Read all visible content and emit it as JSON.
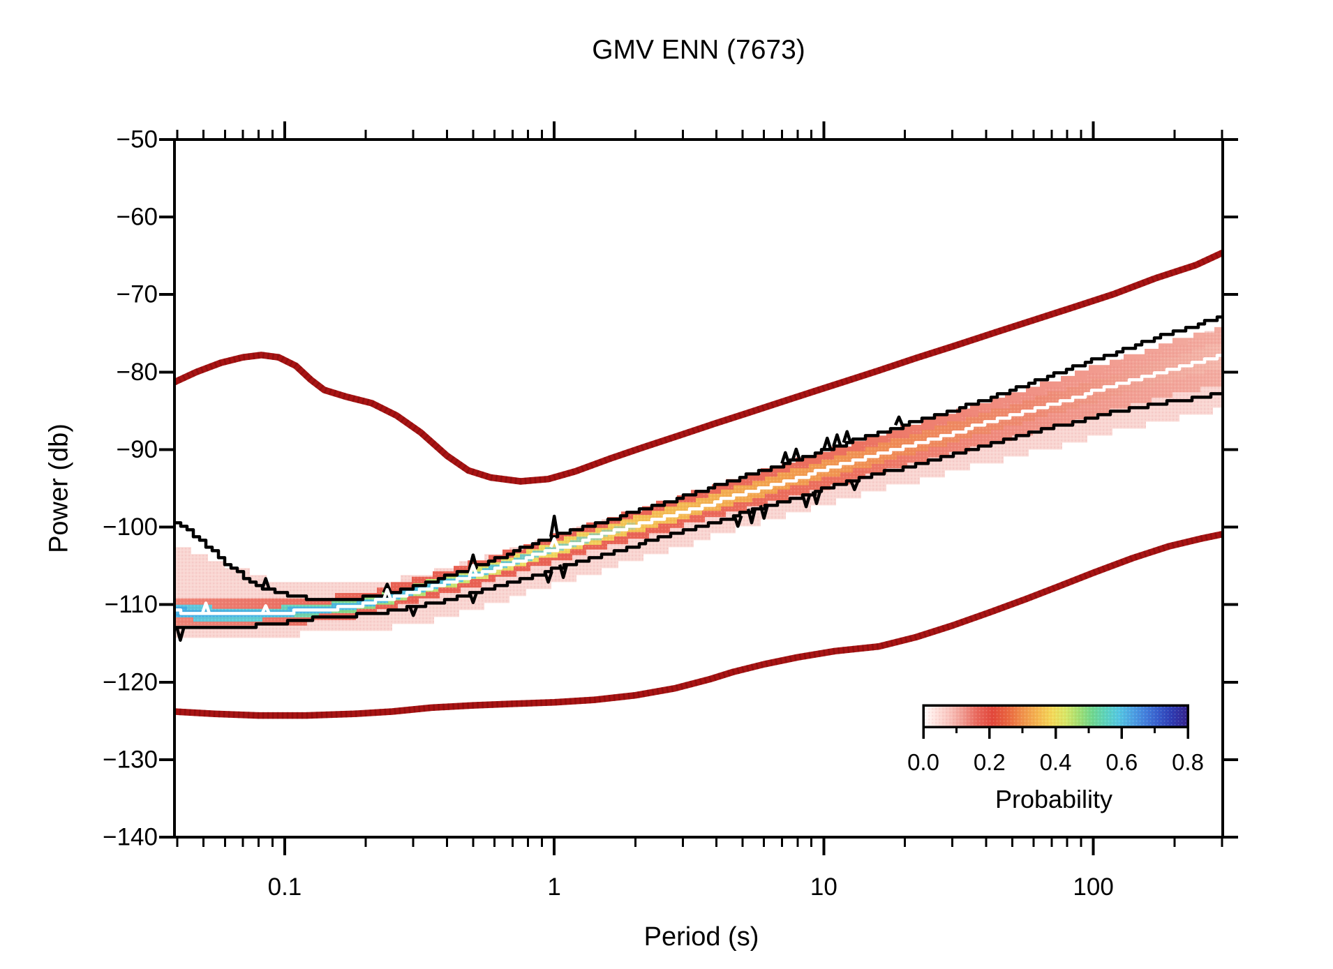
{
  "chart_data": {
    "type": "line",
    "title": "GMV ENN (7673)",
    "xlabel": "Period (s)",
    "ylabel": "Power (db)",
    "x_scale": "log",
    "xlim": [
      0.039,
      302
    ],
    "ylim": [
      -140,
      -50
    ],
    "grid": false,
    "x_major_ticks": [
      0.1,
      1,
      10,
      100
    ],
    "x_major_tick_labels": [
      "0.1",
      "1",
      "10",
      "100"
    ],
    "y_major_ticks": [
      -140,
      -130,
      -120,
      -110,
      -100,
      -90,
      -80,
      -70,
      -60,
      -50
    ],
    "y_major_tick_labels": [
      "−140",
      "−130",
      "−120",
      "−110",
      "−100",
      "−90",
      "−80",
      "−70",
      "−60",
      "−50"
    ],
    "colors": {
      "frame": "#000000",
      "noise_model": "#a81414",
      "noise_model_dots": "#7c0909",
      "envelope": "#000000",
      "mode_line": "#ffffff",
      "center_line": "#2a35a8",
      "halo": "#f8cfca"
    },
    "colorbar": {
      "label": "Probability",
      "tick_values": [
        0.0,
        0.2,
        0.4,
        0.6,
        0.8
      ],
      "tick_labels": [
        "0.0",
        "0.2",
        "0.4",
        "0.6",
        "0.8"
      ],
      "minor_tick_values": [
        0.1,
        0.3,
        0.5,
        0.7
      ],
      "range": [
        0.0,
        0.8
      ],
      "stops": [
        [
          0.0,
          "#ffffff"
        ],
        [
          0.03,
          "#ffe9e5"
        ],
        [
          0.08,
          "#f9c4bd"
        ],
        [
          0.12,
          "#f09a90"
        ],
        [
          0.16,
          "#e96a5e"
        ],
        [
          0.21,
          "#e2473a"
        ],
        [
          0.26,
          "#ea6a40"
        ],
        [
          0.3,
          "#f0924a"
        ],
        [
          0.35,
          "#f5ba50"
        ],
        [
          0.39,
          "#f3da58"
        ],
        [
          0.43,
          "#d8e866"
        ],
        [
          0.47,
          "#a2e072"
        ],
        [
          0.51,
          "#6ed88e"
        ],
        [
          0.55,
          "#5ad4bc"
        ],
        [
          0.59,
          "#52c8e2"
        ],
        [
          0.63,
          "#4aa4e4"
        ],
        [
          0.67,
          "#4080de"
        ],
        [
          0.71,
          "#345ccc"
        ],
        [
          0.75,
          "#2b3cb4"
        ],
        [
          0.8,
          "#32208c"
        ]
      ]
    },
    "series": [
      {
        "name": "noise-model-high",
        "style": "smooth",
        "width": 9.5,
        "points": [
          [
            0.039,
            -81.3
          ],
          [
            0.047,
            -80.0
          ],
          [
            0.058,
            -78.8
          ],
          [
            0.07,
            -78.1
          ],
          [
            0.082,
            -77.8
          ],
          [
            0.095,
            -78.1
          ],
          [
            0.11,
            -79.2
          ],
          [
            0.125,
            -81.0
          ],
          [
            0.14,
            -82.3
          ],
          [
            0.17,
            -83.2
          ],
          [
            0.21,
            -84.0
          ],
          [
            0.26,
            -85.6
          ],
          [
            0.32,
            -87.8
          ],
          [
            0.4,
            -90.8
          ],
          [
            0.48,
            -92.7
          ],
          [
            0.58,
            -93.6
          ],
          [
            0.75,
            -94.1
          ],
          [
            0.95,
            -93.8
          ],
          [
            1.2,
            -92.8
          ],
          [
            1.6,
            -91.2
          ],
          [
            2.1,
            -89.8
          ],
          [
            2.9,
            -88.2
          ],
          [
            3.9,
            -86.7
          ],
          [
            5.2,
            -85.3
          ],
          [
            6.9,
            -83.9
          ],
          [
            9,
            -82.6
          ],
          [
            12,
            -81.2
          ],
          [
            16,
            -79.8
          ],
          [
            22,
            -78.2
          ],
          [
            30,
            -76.7
          ],
          [
            44,
            -74.8
          ],
          [
            60,
            -73.3
          ],
          [
            85,
            -71.6
          ],
          [
            120,
            -69.9
          ],
          [
            170,
            -67.9
          ],
          [
            240,
            -66.2
          ],
          [
            302,
            -64.6
          ]
        ]
      },
      {
        "name": "noise-model-low",
        "style": "smooth",
        "width": 9.5,
        "points": [
          [
            0.039,
            -123.8
          ],
          [
            0.055,
            -124.1
          ],
          [
            0.08,
            -124.3
          ],
          [
            0.12,
            -124.3
          ],
          [
            0.18,
            -124.1
          ],
          [
            0.25,
            -123.8
          ],
          [
            0.35,
            -123.3
          ],
          [
            0.5,
            -123.0
          ],
          [
            0.7,
            -122.8
          ],
          [
            1.0,
            -122.6
          ],
          [
            1.4,
            -122.3
          ],
          [
            2.0,
            -121.7
          ],
          [
            2.8,
            -120.8
          ],
          [
            3.8,
            -119.6
          ],
          [
            4.6,
            -118.7
          ],
          [
            6,
            -117.7
          ],
          [
            8,
            -116.8
          ],
          [
            11,
            -116.0
          ],
          [
            16,
            -115.4
          ],
          [
            22,
            -114.2
          ],
          [
            30,
            -112.7
          ],
          [
            42,
            -110.9
          ],
          [
            56,
            -109.3
          ],
          [
            75,
            -107.6
          ],
          [
            100,
            -105.9
          ],
          [
            140,
            -104.0
          ],
          [
            190,
            -102.5
          ],
          [
            250,
            -101.5
          ],
          [
            302,
            -100.9
          ]
        ]
      },
      {
        "name": "envelope-upper",
        "style": "step",
        "width": 4.5,
        "points": [
          [
            0.039,
            -99.3
          ],
          [
            0.043,
            -100.4
          ],
          [
            0.048,
            -101.8
          ],
          [
            0.054,
            -103.3
          ],
          [
            0.061,
            -104.9
          ],
          [
            0.07,
            -106.4
          ],
          [
            0.08,
            -107.6
          ],
          [
            0.092,
            -108.4
          ],
          [
            0.105,
            -108.9
          ],
          [
            0.12,
            -109.2
          ],
          [
            0.14,
            -109.4
          ],
          [
            0.17,
            -109.3
          ],
          [
            0.21,
            -109.0
          ],
          [
            0.26,
            -108.3
          ],
          [
            0.33,
            -107.2
          ],
          [
            0.42,
            -106.0
          ],
          [
            0.52,
            -104.9
          ],
          [
            0.65,
            -103.6
          ],
          [
            0.8,
            -102.4
          ],
          [
            1.0,
            -101.1
          ],
          [
            1.3,
            -99.9
          ],
          [
            1.7,
            -98.7
          ],
          [
            2.2,
            -97.5
          ],
          [
            2.9,
            -96.2
          ],
          [
            3.8,
            -94.9
          ],
          [
            5,
            -93.5
          ],
          [
            6.5,
            -92.2
          ],
          [
            8.5,
            -90.9
          ],
          [
            11,
            -89.6
          ],
          [
            14,
            -88.4
          ],
          [
            19,
            -87.0
          ],
          [
            25,
            -85.8
          ],
          [
            33,
            -84.4
          ],
          [
            44,
            -83.0
          ],
          [
            60,
            -81.2
          ],
          [
            80,
            -79.6
          ],
          [
            110,
            -77.9
          ],
          [
            150,
            -76.2
          ],
          [
            200,
            -74.7
          ],
          [
            250,
            -73.7
          ],
          [
            302,
            -72.9
          ]
        ],
        "spikes": [
          [
            0.085,
            1.3
          ],
          [
            0.24,
            1.2
          ],
          [
            0.5,
            1.5
          ],
          [
            1.0,
            2.5
          ],
          [
            7.2,
            1.3
          ],
          [
            7.9,
            1.3
          ],
          [
            10.3,
            1.4
          ],
          [
            11.2,
            1.4
          ],
          [
            12.2,
            1.4
          ],
          [
            19,
            1.2
          ]
        ]
      },
      {
        "name": "envelope-lower",
        "style": "step",
        "width": 4.5,
        "points": [
          [
            0.039,
            -112.9
          ],
          [
            0.07,
            -112.8
          ],
          [
            0.09,
            -112.5
          ],
          [
            0.11,
            -112.0
          ],
          [
            0.14,
            -111.7
          ],
          [
            0.18,
            -111.4
          ],
          [
            0.23,
            -111.0
          ],
          [
            0.3,
            -110.3
          ],
          [
            0.38,
            -109.5
          ],
          [
            0.48,
            -108.6
          ],
          [
            0.6,
            -107.7
          ],
          [
            0.75,
            -106.7
          ],
          [
            0.95,
            -105.6
          ],
          [
            1.2,
            -104.5
          ],
          [
            1.55,
            -103.4
          ],
          [
            2.0,
            -102.3
          ],
          [
            2.6,
            -101.1
          ],
          [
            3.4,
            -99.9
          ],
          [
            4.5,
            -98.7
          ],
          [
            5.8,
            -97.5
          ],
          [
            7.5,
            -96.4
          ],
          [
            9.5,
            -95.3
          ],
          [
            12,
            -94.3
          ],
          [
            16,
            -93.1
          ],
          [
            21,
            -92.0
          ],
          [
            28,
            -90.8
          ],
          [
            37,
            -89.6
          ],
          [
            48,
            -88.6
          ],
          [
            62,
            -87.6
          ],
          [
            80,
            -86.6
          ],
          [
            105,
            -85.6
          ],
          [
            140,
            -84.6
          ],
          [
            185,
            -83.9
          ],
          [
            240,
            -83.3
          ],
          [
            302,
            -82.8
          ]
        ],
        "spikes": [
          [
            0.041,
            -1.7
          ],
          [
            0.3,
            -1.1
          ],
          [
            0.5,
            -1.3
          ],
          [
            0.95,
            -1.5
          ],
          [
            1.08,
            -1.5
          ],
          [
            4.8,
            -1.5
          ],
          [
            5.4,
            -1.6
          ],
          [
            6.0,
            -1.5
          ],
          [
            8.6,
            -1.6
          ],
          [
            9.4,
            -1.6
          ],
          [
            13,
            -1.2
          ]
        ]
      },
      {
        "name": "mode",
        "style": "step",
        "width": 4.5,
        "points": [
          [
            0.039,
            -110.9
          ],
          [
            0.05,
            -111.2
          ],
          [
            0.07,
            -111.3
          ],
          [
            0.09,
            -111.1
          ],
          [
            0.12,
            -110.8
          ],
          [
            0.16,
            -110.4
          ],
          [
            0.2,
            -109.9
          ],
          [
            0.27,
            -108.7
          ],
          [
            0.35,
            -107.6
          ],
          [
            0.45,
            -106.6
          ],
          [
            0.58,
            -105.5
          ],
          [
            0.75,
            -104.2
          ],
          [
            1.0,
            -102.8
          ],
          [
            1.3,
            -101.6
          ],
          [
            1.7,
            -100.4
          ],
          [
            2.2,
            -99.3
          ],
          [
            2.9,
            -98.1
          ],
          [
            3.8,
            -96.9
          ],
          [
            5.0,
            -95.7
          ],
          [
            6.5,
            -94.5
          ],
          [
            8.5,
            -93.3
          ],
          [
            11,
            -92.2
          ],
          [
            14.5,
            -91.0
          ],
          [
            19,
            -89.8
          ],
          [
            25,
            -88.6
          ],
          [
            33,
            -87.4
          ],
          [
            43,
            -86.2
          ],
          [
            57,
            -85.0
          ],
          [
            75,
            -83.8
          ],
          [
            100,
            -82.5
          ],
          [
            130,
            -81.4
          ],
          [
            170,
            -80.2
          ],
          [
            220,
            -79.0
          ],
          [
            302,
            -77.8
          ]
        ],
        "spikes": [
          [
            0.051,
            1.4
          ],
          [
            0.085,
            1.0
          ],
          [
            0.24,
            1.1
          ],
          [
            0.5,
            1.2
          ],
          [
            1.0,
            1.3
          ]
        ]
      }
    ],
    "band": {
      "periods": [
        0.039,
        0.06,
        0.09,
        0.13,
        0.2,
        0.3,
        0.5,
        0.8,
        1.3,
        2,
        3.2,
        5,
        8,
        13,
        20,
        32,
        50,
        80,
        130,
        200,
        302
      ],
      "halo_top": [
        -102.5,
        -105.0,
        -106.9,
        -107.5,
        -107.3,
        -106.2,
        -104.4,
        -102.1,
        -100.0,
        -98.1,
        -96.0,
        -94.1,
        -92.0,
        -89.8,
        -87.9,
        -85.7,
        -83.6,
        -81.1,
        -78.5,
        -76.3,
        -74.3
      ],
      "halo_bottom": [
        -114.4,
        -114.2,
        -114.0,
        -113.8,
        -113.4,
        -112.7,
        -110.9,
        -108.7,
        -106.4,
        -104.5,
        -102.3,
        -100.3,
        -98.2,
        -96.2,
        -94.6,
        -92.8,
        -91.2,
        -89.4,
        -87.6,
        -86.1,
        -85.0
      ],
      "mid_halfwidth": [
        1.7,
        1.7,
        1.6,
        1.6,
        1.6,
        1.6,
        1.7,
        1.8,
        1.9,
        2.0,
        2.1,
        2.3,
        2.4,
        2.6,
        2.7,
        2.9,
        3.0,
        3.2,
        3.4,
        3.6,
        3.8
      ],
      "core_halfwidth": [
        0.9,
        0.85,
        0.8,
        0.8,
        0.8,
        0.85,
        0.9,
        1.0,
        1.05,
        1.1,
        1.15,
        1.2,
        1.25,
        1.3,
        1.35,
        1.4,
        1.45,
        1.5,
        1.55,
        1.65,
        1.75
      ],
      "inner_halfwidth": 0.5,
      "inner_pmax": 3,
      "mid_stops": [
        [
          0,
          "#ee8578"
        ],
        [
          0.2,
          "#e86052"
        ],
        [
          0.45,
          "#e96456"
        ],
        [
          0.65,
          "#ec7260"
        ],
        [
          0.8,
          "#f08f82"
        ],
        [
          1,
          "#f3ada2"
        ]
      ],
      "core_stops": [
        [
          0,
          "#5cc4e0"
        ],
        [
          0.08,
          "#5ecfd4"
        ],
        [
          0.16,
          "#7ed98a"
        ],
        [
          0.24,
          "#b8e472"
        ],
        [
          0.33,
          "#eede60"
        ],
        [
          0.45,
          "#f4c254"
        ],
        [
          0.58,
          "#f2a04e"
        ],
        [
          0.7,
          "#ef8a58"
        ],
        [
          0.82,
          "#ee8a72"
        ],
        [
          0.92,
          "#f0a294"
        ],
        [
          1,
          "#f4b8ac"
        ]
      ],
      "inner_stops": [
        [
          0,
          "#41aee4",
          1
        ],
        [
          0.6,
          "#4cc2e2",
          0.95
        ],
        [
          0.85,
          "#55cde0",
          0.5
        ],
        [
          1,
          "#58d0e0",
          0
        ]
      ]
    }
  }
}
